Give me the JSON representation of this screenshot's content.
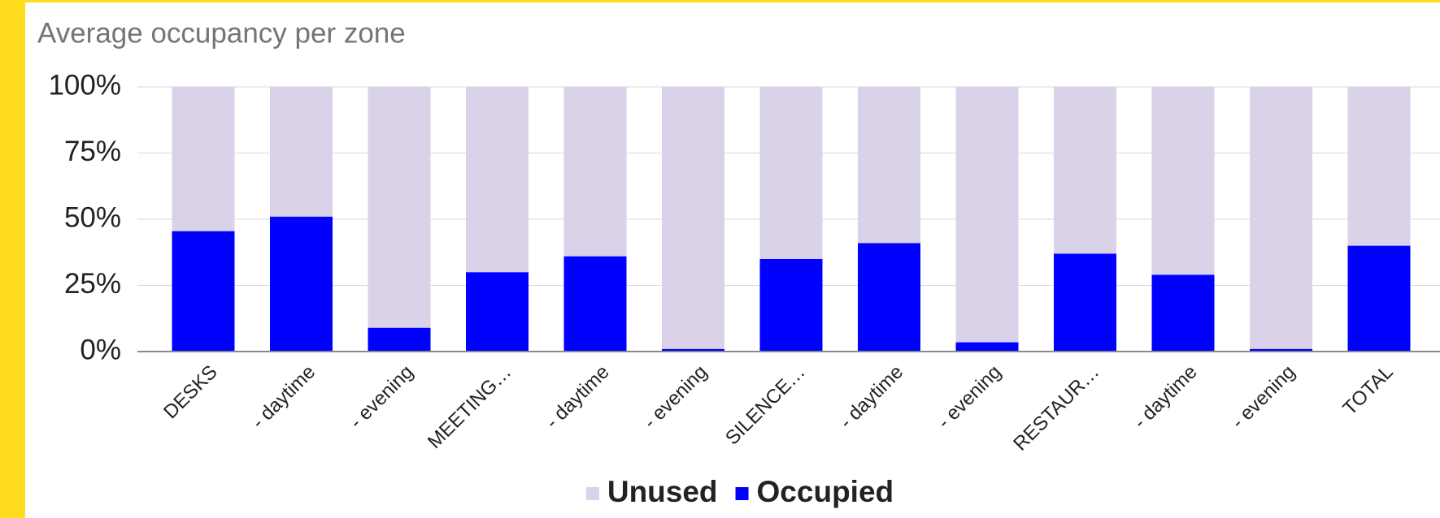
{
  "chart_data": {
    "type": "stacked_bar",
    "title": "Average occupancy per zone",
    "categories": [
      "DESKS",
      "- daytime",
      "- evening",
      "MEETING…",
      "- daytime",
      "- evening",
      "SILENCE…",
      "- daytime",
      "- evening",
      "RESTAUR…",
      "- daytime",
      "- evening",
      "TOTAL"
    ],
    "series": [
      {
        "name": "Unused",
        "color": "#d9d2e9",
        "values": [
          54.5,
          49,
          91,
          70,
          64,
          99,
          65,
          59,
          96.5,
          63,
          71,
          99,
          60
        ]
      },
      {
        "name": "Occupied",
        "color": "#0000ff",
        "values": [
          45.5,
          51,
          9,
          30,
          36,
          1,
          35,
          41,
          3.5,
          37,
          29,
          1,
          40
        ]
      }
    ],
    "ylim": [
      0,
      100
    ],
    "yticks": [
      {
        "value": 0,
        "label": "0%"
      },
      {
        "value": 25,
        "label": "25%"
      },
      {
        "value": 50,
        "label": "50%"
      },
      {
        "value": 75,
        "label": "75%"
      },
      {
        "value": 100,
        "label": "100%"
      }
    ],
    "grid": true,
    "legend": "bottom"
  }
}
